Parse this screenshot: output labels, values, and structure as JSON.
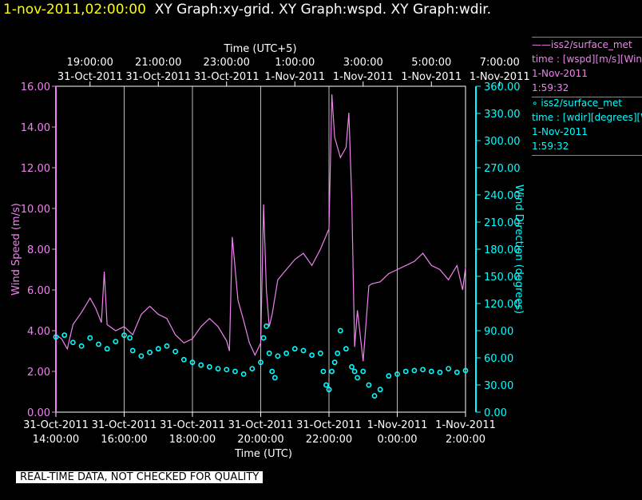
{
  "header": {
    "timestamp": "1-nov-2011,02:00:00",
    "graphs": "XY Graph:xy-grid.  XY Graph:wspd.  XY Graph:wdir."
  },
  "legend": [
    {
      "line1": "——iss2/surface_met",
      "line2": "time : [wspd][m/s][Wind",
      "line3": "1-Nov-2011",
      "line4": "1:59:32",
      "color": "#ee82ee"
    },
    {
      "line1": "∘ iss2/surface_met",
      "line2": "time : [wdir][degrees][W",
      "line3": "1-Nov-2011",
      "line4": "1:59:32",
      "color": "#00ffff"
    }
  ],
  "footer": {
    "note": "REAL-TIME DATA, NOT CHECKED FOR QUALITY"
  },
  "chart_data": {
    "type": "line",
    "grid": "vertical",
    "top_axis": {
      "label": "Time (UTC+5)",
      "ticks": [
        {
          "time": "19:00:00",
          "date": "31-Oct-2011"
        },
        {
          "time": "21:00:00",
          "date": "31-Oct-2011"
        },
        {
          "time": "23:00:00",
          "date": "31-Oct-2011"
        },
        {
          "time": "1:00:00",
          "date": "1-Nov-2011"
        },
        {
          "time": "3:00:00",
          "date": "1-Nov-2011"
        },
        {
          "time": "5:00:00",
          "date": "1-Nov-2011"
        },
        {
          "time": "7:00:00",
          "date": "1-Nov-2011"
        }
      ]
    },
    "bottom_axis": {
      "label": "Time (UTC)",
      "xlim": [
        "31-Oct-2011 14:00:00",
        "1-Nov-2011 02:00:00"
      ],
      "ticks": [
        {
          "date": "31-Oct-2011",
          "time": "14:00:00"
        },
        {
          "date": "31-Oct-2011",
          "time": "16:00:00"
        },
        {
          "date": "31-Oct-2011",
          "time": "18:00:00"
        },
        {
          "date": "31-Oct-2011",
          "time": "20:00:00"
        },
        {
          "date": "31-Oct-2011",
          "time": "22:00:00"
        },
        {
          "date": "1-Nov-2011",
          "time": "0:00:00"
        },
        {
          "date": "1-Nov-2011",
          "time": "2:00:00"
        }
      ]
    },
    "left_axis": {
      "label": "Wind Speed (m/s)",
      "ylim": [
        0,
        16
      ],
      "ticks": [
        "0.00",
        "2.00",
        "4.00",
        "6.00",
        "8.00",
        "10.00",
        "12.00",
        "14.00",
        "16.00"
      ],
      "color": "#ee82ee"
    },
    "right_axis": {
      "label": "Wind Direction (degrees)",
      "ylim": [
        0,
        360
      ],
      "ticks": [
        "0.00",
        "30.00",
        "60.00",
        "90.00",
        "120.00",
        "150.00",
        "180.00",
        "210.00",
        "240.00",
        "270.00",
        "300.00",
        "330.00",
        "360.00"
      ],
      "color": "#00ffff"
    },
    "series": [
      {
        "name": "iss2/surface_met time : [wspd][m/s]",
        "axis": "left",
        "style": "line",
        "color": "#ee82ee",
        "x": [
          "31-Oct-2011 14:00:00",
          "31-Oct-2011 14:10:00",
          "31-Oct-2011 14:20:00",
          "31-Oct-2011 14:30:00",
          "31-Oct-2011 14:45:00",
          "31-Oct-2011 15:00:00",
          "31-Oct-2011 15:10:00",
          "31-Oct-2011 15:20:00",
          "31-Oct-2011 15:25:00",
          "31-Oct-2011 15:30:00",
          "31-Oct-2011 15:45:00",
          "31-Oct-2011 16:00:00",
          "31-Oct-2011 16:15:00",
          "31-Oct-2011 16:30:00",
          "31-Oct-2011 16:45:00",
          "31-Oct-2011 17:00:00",
          "31-Oct-2011 17:15:00",
          "31-Oct-2011 17:30:00",
          "31-Oct-2011 17:45:00",
          "31-Oct-2011 18:00:00",
          "31-Oct-2011 18:15:00",
          "31-Oct-2011 18:30:00",
          "31-Oct-2011 18:45:00",
          "31-Oct-2011 19:00:00",
          "31-Oct-2011 19:05:00",
          "31-Oct-2011 19:10:00",
          "31-Oct-2011 19:20:00",
          "31-Oct-2011 19:30:00",
          "31-Oct-2011 19:40:00",
          "31-Oct-2011 19:50:00",
          "31-Oct-2011 20:00:00",
          "31-Oct-2011 20:05:00",
          "31-Oct-2011 20:10:00",
          "31-Oct-2011 20:15:00",
          "31-Oct-2011 20:20:00",
          "31-Oct-2011 20:30:00",
          "31-Oct-2011 20:45:00",
          "31-Oct-2011 21:00:00",
          "31-Oct-2011 21:15:00",
          "31-Oct-2011 21:30:00",
          "31-Oct-2011 21:45:00",
          "31-Oct-2011 22:00:00",
          "31-Oct-2011 22:05:00",
          "31-Oct-2011 22:10:00",
          "31-Oct-2011 22:20:00",
          "31-Oct-2011 22:30:00",
          "31-Oct-2011 22:35:00",
          "31-Oct-2011 22:40:00",
          "31-Oct-2011 22:45:00",
          "31-Oct-2011 22:50:00",
          "31-Oct-2011 23:00:00",
          "31-Oct-2011 23:10:00",
          "31-Oct-2011 23:15:00",
          "31-Oct-2011 23:30:00",
          "31-Oct-2011 23:45:00",
          "1-Nov-2011 00:00:00",
          "1-Nov-2011 00:15:00",
          "1-Nov-2011 00:30:00",
          "1-Nov-2011 00:45:00",
          "1-Nov-2011 01:00:00",
          "1-Nov-2011 01:15:00",
          "1-Nov-2011 01:30:00",
          "1-Nov-2011 01:45:00",
          "1-Nov-2011 01:55:00",
          "1-Nov-2011 02:00:00"
        ],
        "y": [
          3.8,
          3.6,
          3.1,
          4.3,
          4.9,
          5.6,
          5.1,
          4.4,
          6.9,
          4.3,
          4.0,
          4.2,
          3.8,
          4.8,
          5.2,
          4.8,
          4.6,
          3.8,
          3.4,
          3.6,
          4.2,
          4.6,
          4.2,
          3.5,
          3.0,
          8.6,
          5.5,
          4.5,
          3.4,
          2.8,
          3.4,
          10.2,
          6.0,
          4.2,
          4.8,
          6.5,
          7.0,
          7.5,
          7.8,
          7.2,
          8.0,
          9.0,
          15.6,
          13.5,
          12.5,
          13.0,
          14.7,
          10.5,
          3.2,
          5.0,
          2.5,
          6.2,
          6.3,
          6.4,
          6.8,
          7.0,
          7.2,
          7.4,
          7.8,
          7.2,
          7.0,
          6.5,
          7.2,
          6.0,
          7.1
        ]
      },
      {
        "name": "iss2/surface_met time : [wdir][degrees]",
        "axis": "right",
        "style": "markers",
        "color": "#00ffff",
        "x": [
          "31-Oct-2011 14:00:00",
          "31-Oct-2011 14:15:00",
          "31-Oct-2011 14:30:00",
          "31-Oct-2011 14:45:00",
          "31-Oct-2011 15:00:00",
          "31-Oct-2011 15:15:00",
          "31-Oct-2011 15:30:00",
          "31-Oct-2011 15:45:00",
          "31-Oct-2011 16:00:00",
          "31-Oct-2011 16:10:00",
          "31-Oct-2011 16:15:00",
          "31-Oct-2011 16:30:00",
          "31-Oct-2011 16:45:00",
          "31-Oct-2011 17:00:00",
          "31-Oct-2011 17:15:00",
          "31-Oct-2011 17:30:00",
          "31-Oct-2011 17:45:00",
          "31-Oct-2011 18:00:00",
          "31-Oct-2011 18:15:00",
          "31-Oct-2011 18:30:00",
          "31-Oct-2011 18:45:00",
          "31-Oct-2011 19:00:00",
          "31-Oct-2011 19:15:00",
          "31-Oct-2011 19:30:00",
          "31-Oct-2011 19:45:00",
          "31-Oct-2011 20:00:00",
          "31-Oct-2011 20:05:00",
          "31-Oct-2011 20:10:00",
          "31-Oct-2011 20:15:00",
          "31-Oct-2011 20:20:00",
          "31-Oct-2011 20:25:00",
          "31-Oct-2011 20:30:00",
          "31-Oct-2011 20:45:00",
          "31-Oct-2011 21:00:00",
          "31-Oct-2011 21:15:00",
          "31-Oct-2011 21:30:00",
          "31-Oct-2011 21:45:00",
          "31-Oct-2011 21:50:00",
          "31-Oct-2011 21:55:00",
          "31-Oct-2011 22:00:00",
          "31-Oct-2011 22:05:00",
          "31-Oct-2011 22:10:00",
          "31-Oct-2011 22:15:00",
          "31-Oct-2011 22:20:00",
          "31-Oct-2011 22:30:00",
          "31-Oct-2011 22:40:00",
          "31-Oct-2011 22:45:00",
          "31-Oct-2011 22:50:00",
          "31-Oct-2011 23:00:00",
          "31-Oct-2011 23:10:00",
          "31-Oct-2011 23:20:00",
          "31-Oct-2011 23:30:00",
          "31-Oct-2011 23:45:00",
          "1-Nov-2011 00:00:00",
          "1-Nov-2011 00:15:00",
          "1-Nov-2011 00:30:00",
          "1-Nov-2011 00:45:00",
          "1-Nov-2011 01:00:00",
          "1-Nov-2011 01:15:00",
          "1-Nov-2011 01:30:00",
          "1-Nov-2011 01:45:00",
          "1-Nov-2011 02:00:00"
        ],
        "y": [
          83,
          85,
          77,
          73,
          82,
          75,
          70,
          78,
          85,
          82,
          68,
          62,
          66,
          70,
          73,
          67,
          58,
          55,
          52,
          50,
          48,
          47,
          45,
          42,
          48,
          55,
          82,
          95,
          65,
          45,
          38,
          62,
          65,
          70,
          68,
          63,
          65,
          45,
          30,
          25,
          45,
          55,
          65,
          90,
          70,
          50,
          45,
          38,
          45,
          30,
          18,
          25,
          40,
          42,
          45,
          46,
          47,
          45,
          44,
          48,
          44,
          46
        ]
      }
    ]
  }
}
